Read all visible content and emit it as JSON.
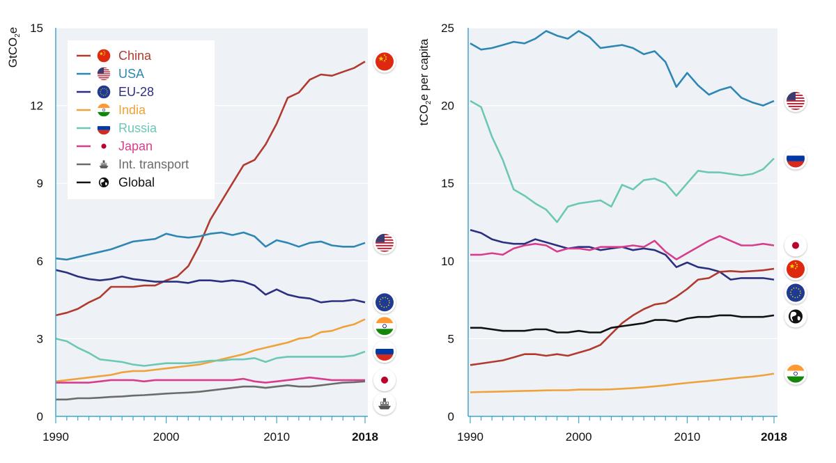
{
  "colors": {
    "China": "#b03a2e",
    "USA": "#2e86b3",
    "EU-28": "#2b2f7f",
    "India": "#f0a23a",
    "Russia": "#6cc7b6",
    "Japan": "#d83d8d",
    "Int. transport": "#6b6b6b",
    "Global": "#111111"
  },
  "chart_data": [
    {
      "type": "line",
      "ylabel_main": "GtCO",
      "ylabel_sub": "2",
      "ylabel_tail": "e",
      "ylim": [
        0,
        15
      ],
      "yticks": [
        "0",
        "3",
        "6",
        "9",
        "12",
        "15"
      ],
      "xlim": [
        1990,
        2018
      ],
      "xticks": [
        "1990",
        "2000",
        "2010",
        "2018"
      ],
      "grid": true,
      "legend_position": "top-left",
      "series": [
        {
          "name": "China",
          "icon": "china-flag-icon",
          "x": [
            1990,
            1991,
            1992,
            1993,
            1994,
            1995,
            1996,
            1997,
            1998,
            1999,
            2000,
            2001,
            2002,
            2003,
            2004,
            2005,
            2006,
            2007,
            2008,
            2009,
            2010,
            2011,
            2012,
            2013,
            2014,
            2015,
            2016,
            2017,
            2018
          ],
          "y": [
            3.9,
            4.0,
            4.15,
            4.4,
            4.6,
            5.0,
            5.0,
            5.0,
            5.05,
            5.05,
            5.25,
            5.4,
            5.8,
            6.6,
            7.6,
            8.3,
            9.0,
            9.7,
            9.9,
            10.5,
            11.3,
            12.3,
            12.5,
            13.0,
            13.2,
            13.15,
            13.3,
            13.45,
            13.7
          ]
        },
        {
          "name": "USA",
          "icon": "usa-flag-icon",
          "x": [
            1990,
            1991,
            1992,
            1993,
            1994,
            1995,
            1996,
            1997,
            1998,
            1999,
            2000,
            2001,
            2002,
            2003,
            2004,
            2005,
            2006,
            2007,
            2008,
            2009,
            2010,
            2011,
            2012,
            2013,
            2014,
            2015,
            2016,
            2017,
            2018
          ],
          "y": [
            6.1,
            6.05,
            6.15,
            6.25,
            6.35,
            6.45,
            6.6,
            6.75,
            6.8,
            6.85,
            7.05,
            6.95,
            6.9,
            6.95,
            7.05,
            7.1,
            7.0,
            7.1,
            6.95,
            6.55,
            6.8,
            6.7,
            6.55,
            6.7,
            6.75,
            6.6,
            6.55,
            6.55,
            6.7
          ]
        },
        {
          "name": "EU-28",
          "icon": "eu-flag-icon",
          "x": [
            1990,
            1991,
            1992,
            1993,
            1994,
            1995,
            1996,
            1997,
            1998,
            1999,
            2000,
            2001,
            2002,
            2003,
            2004,
            2005,
            2006,
            2007,
            2008,
            2009,
            2010,
            2011,
            2012,
            2013,
            2014,
            2015,
            2016,
            2017,
            2018
          ],
          "y": [
            5.65,
            5.55,
            5.4,
            5.3,
            5.25,
            5.3,
            5.4,
            5.3,
            5.25,
            5.2,
            5.2,
            5.2,
            5.15,
            5.25,
            5.25,
            5.2,
            5.25,
            5.2,
            5.05,
            4.7,
            4.9,
            4.7,
            4.6,
            4.55,
            4.4,
            4.45,
            4.45,
            4.5,
            4.4
          ]
        },
        {
          "name": "India",
          "icon": "india-flag-icon",
          "x": [
            1990,
            1991,
            1992,
            1993,
            1994,
            1995,
            1996,
            1997,
            1998,
            1999,
            2000,
            2001,
            2002,
            2003,
            2004,
            2005,
            2006,
            2007,
            2008,
            2009,
            2010,
            2011,
            2012,
            2013,
            2014,
            2015,
            2016,
            2017,
            2018
          ],
          "y": [
            1.35,
            1.4,
            1.45,
            1.5,
            1.55,
            1.6,
            1.7,
            1.75,
            1.75,
            1.8,
            1.85,
            1.9,
            1.95,
            2.0,
            2.1,
            2.2,
            2.3,
            2.4,
            2.55,
            2.65,
            2.75,
            2.85,
            3.0,
            3.05,
            3.25,
            3.3,
            3.45,
            3.55,
            3.75
          ]
        },
        {
          "name": "Russia",
          "icon": "russia-flag-icon",
          "x": [
            1990,
            1991,
            1992,
            1993,
            1994,
            1995,
            1996,
            1997,
            1998,
            1999,
            2000,
            2001,
            2002,
            2003,
            2004,
            2005,
            2006,
            2007,
            2008,
            2009,
            2010,
            2011,
            2012,
            2013,
            2014,
            2015,
            2016,
            2017,
            2018
          ],
          "y": [
            3.0,
            2.9,
            2.65,
            2.45,
            2.2,
            2.15,
            2.1,
            2.0,
            1.95,
            2.0,
            2.05,
            2.05,
            2.05,
            2.1,
            2.15,
            2.15,
            2.2,
            2.2,
            2.25,
            2.1,
            2.25,
            2.3,
            2.3,
            2.3,
            2.3,
            2.3,
            2.3,
            2.35,
            2.5
          ]
        },
        {
          "name": "Japan",
          "icon": "japan-flag-icon",
          "x": [
            1990,
            1991,
            1992,
            1993,
            1994,
            1995,
            1996,
            1997,
            1998,
            1999,
            2000,
            2001,
            2002,
            2003,
            2004,
            2005,
            2006,
            2007,
            2008,
            2009,
            2010,
            2011,
            2012,
            2013,
            2014,
            2015,
            2016,
            2017,
            2018
          ],
          "y": [
            1.3,
            1.3,
            1.3,
            1.3,
            1.35,
            1.4,
            1.4,
            1.4,
            1.35,
            1.4,
            1.4,
            1.4,
            1.4,
            1.4,
            1.4,
            1.4,
            1.4,
            1.45,
            1.35,
            1.3,
            1.35,
            1.4,
            1.45,
            1.5,
            1.45,
            1.4,
            1.4,
            1.4,
            1.4
          ]
        },
        {
          "name": "Int. transport",
          "icon": "ship-icon",
          "x": [
            1990,
            1991,
            1992,
            1993,
            1994,
            1995,
            1996,
            1997,
            1998,
            1999,
            2000,
            2001,
            2002,
            2003,
            2004,
            2005,
            2006,
            2007,
            2008,
            2009,
            2010,
            2011,
            2012,
            2013,
            2014,
            2015,
            2016,
            2017,
            2018
          ],
          "y": [
            0.65,
            0.65,
            0.7,
            0.7,
            0.72,
            0.75,
            0.77,
            0.8,
            0.82,
            0.85,
            0.88,
            0.9,
            0.92,
            0.95,
            1.0,
            1.05,
            1.1,
            1.15,
            1.15,
            1.1,
            1.15,
            1.2,
            1.15,
            1.15,
            1.2,
            1.25,
            1.3,
            1.32,
            1.35
          ]
        }
      ]
    },
    {
      "type": "line",
      "ylabel_main": "tCO",
      "ylabel_sub": "2",
      "ylabel_tail": "e per capita",
      "ylim": [
        0,
        25
      ],
      "yticks": [
        "0",
        "5",
        "10",
        "15",
        "20",
        "25"
      ],
      "xlim": [
        1990,
        2018
      ],
      "xticks": [
        "1990",
        "2000",
        "2010",
        "2018"
      ],
      "grid": true,
      "series": [
        {
          "name": "USA",
          "icon": "usa-flag-icon",
          "x": [
            1990,
            1991,
            1992,
            1993,
            1994,
            1995,
            1996,
            1997,
            1998,
            1999,
            2000,
            2001,
            2002,
            2003,
            2004,
            2005,
            2006,
            2007,
            2008,
            2009,
            2010,
            2011,
            2012,
            2013,
            2014,
            2015,
            2016,
            2017,
            2018
          ],
          "y": [
            24.0,
            23.6,
            23.7,
            23.9,
            24.1,
            24.0,
            24.3,
            24.8,
            24.5,
            24.3,
            24.8,
            24.4,
            23.7,
            23.8,
            23.9,
            23.7,
            23.3,
            23.5,
            22.8,
            21.2,
            22.1,
            21.3,
            20.7,
            21.0,
            21.2,
            20.5,
            20.2,
            20.0,
            20.3
          ]
        },
        {
          "name": "Russia",
          "icon": "russia-flag-icon",
          "x": [
            1990,
            1991,
            1992,
            1993,
            1994,
            1995,
            1996,
            1997,
            1998,
            1999,
            2000,
            2001,
            2002,
            2003,
            2004,
            2005,
            2006,
            2007,
            2008,
            2009,
            2010,
            2011,
            2012,
            2013,
            2014,
            2015,
            2016,
            2017,
            2018
          ],
          "y": [
            20.3,
            19.9,
            18.0,
            16.5,
            14.6,
            14.2,
            13.7,
            13.3,
            12.5,
            13.5,
            13.7,
            13.8,
            13.9,
            13.5,
            14.9,
            14.6,
            15.2,
            15.3,
            15.0,
            14.2,
            15.0,
            15.8,
            15.7,
            15.7,
            15.6,
            15.5,
            15.6,
            15.9,
            16.6
          ]
        },
        {
          "name": "EU-28",
          "icon": "eu-flag-icon",
          "x": [
            1990,
            1991,
            1992,
            1993,
            1994,
            1995,
            1996,
            1997,
            1998,
            1999,
            2000,
            2001,
            2002,
            2003,
            2004,
            2005,
            2006,
            2007,
            2008,
            2009,
            2010,
            2011,
            2012,
            2013,
            2014,
            2015,
            2016,
            2017,
            2018
          ],
          "y": [
            12.0,
            11.8,
            11.4,
            11.2,
            11.1,
            11.1,
            11.4,
            11.2,
            11.0,
            10.8,
            10.9,
            10.9,
            10.7,
            10.8,
            10.9,
            10.7,
            10.8,
            10.7,
            10.4,
            9.6,
            9.9,
            9.6,
            9.5,
            9.3,
            8.8,
            8.9,
            8.9,
            8.9,
            8.8
          ]
        },
        {
          "name": "Japan",
          "icon": "japan-flag-icon",
          "x": [
            1990,
            1991,
            1992,
            1993,
            1994,
            1995,
            1996,
            1997,
            1998,
            1999,
            2000,
            2001,
            2002,
            2003,
            2004,
            2005,
            2006,
            2007,
            2008,
            2009,
            2010,
            2011,
            2012,
            2013,
            2014,
            2015,
            2016,
            2017,
            2018
          ],
          "y": [
            10.4,
            10.4,
            10.5,
            10.4,
            10.8,
            11.0,
            11.1,
            11.0,
            10.6,
            10.8,
            10.8,
            10.7,
            10.9,
            10.9,
            10.9,
            11.0,
            10.9,
            11.3,
            10.6,
            10.1,
            10.5,
            10.9,
            11.3,
            11.6,
            11.3,
            11.0,
            11.0,
            11.1,
            11.0
          ]
        },
        {
          "name": "China",
          "icon": "china-flag-icon",
          "x": [
            1990,
            1991,
            1992,
            1993,
            1994,
            1995,
            1996,
            1997,
            1998,
            1999,
            2000,
            2001,
            2002,
            2003,
            2004,
            2005,
            2006,
            2007,
            2008,
            2009,
            2010,
            2011,
            2012,
            2013,
            2014,
            2015,
            2016,
            2017,
            2018
          ],
          "y": [
            3.3,
            3.4,
            3.5,
            3.6,
            3.8,
            4.0,
            4.0,
            3.9,
            4.0,
            3.9,
            4.1,
            4.3,
            4.6,
            5.3,
            6.0,
            6.5,
            6.9,
            7.2,
            7.3,
            7.7,
            8.2,
            8.8,
            8.9,
            9.3,
            9.35,
            9.3,
            9.35,
            9.4,
            9.5
          ]
        },
        {
          "name": "Global",
          "icon": "globe-icon",
          "x": [
            1990,
            1991,
            1992,
            1993,
            1994,
            1995,
            1996,
            1997,
            1998,
            1999,
            2000,
            2001,
            2002,
            2003,
            2004,
            2005,
            2006,
            2007,
            2008,
            2009,
            2010,
            2011,
            2012,
            2013,
            2014,
            2015,
            2016,
            2017,
            2018
          ],
          "y": [
            5.7,
            5.7,
            5.6,
            5.5,
            5.5,
            5.5,
            5.6,
            5.6,
            5.4,
            5.4,
            5.5,
            5.4,
            5.4,
            5.7,
            5.8,
            5.9,
            6.0,
            6.2,
            6.2,
            6.1,
            6.3,
            6.4,
            6.4,
            6.5,
            6.5,
            6.4,
            6.4,
            6.4,
            6.5
          ]
        },
        {
          "name": "India",
          "icon": "india-flag-icon",
          "x": [
            1990,
            1991,
            1992,
            1993,
            1994,
            1995,
            1996,
            1997,
            1998,
            1999,
            2000,
            2001,
            2002,
            2003,
            2004,
            2005,
            2006,
            2007,
            2008,
            2009,
            2010,
            2011,
            2012,
            2013,
            2014,
            2015,
            2016,
            2017,
            2018
          ],
          "y": [
            1.55,
            1.57,
            1.58,
            1.6,
            1.62,
            1.64,
            1.65,
            1.67,
            1.68,
            1.68,
            1.72,
            1.72,
            1.72,
            1.74,
            1.78,
            1.82,
            1.87,
            1.93,
            2.0,
            2.08,
            2.15,
            2.22,
            2.28,
            2.35,
            2.43,
            2.5,
            2.56,
            2.64,
            2.75
          ]
        }
      ]
    }
  ],
  "legend": [
    {
      "name": "China",
      "icon": "china-flag-icon"
    },
    {
      "name": "USA",
      "icon": "usa-flag-icon"
    },
    {
      "name": "EU-28",
      "icon": "eu-flag-icon"
    },
    {
      "name": "India",
      "icon": "india-flag-icon"
    },
    {
      "name": "Russia",
      "icon": "russia-flag-icon"
    },
    {
      "name": "Japan",
      "icon": "japan-flag-icon"
    },
    {
      "name": "Int. transport",
      "icon": "ship-icon"
    },
    {
      "name": "Global",
      "icon": "globe-icon"
    }
  ]
}
